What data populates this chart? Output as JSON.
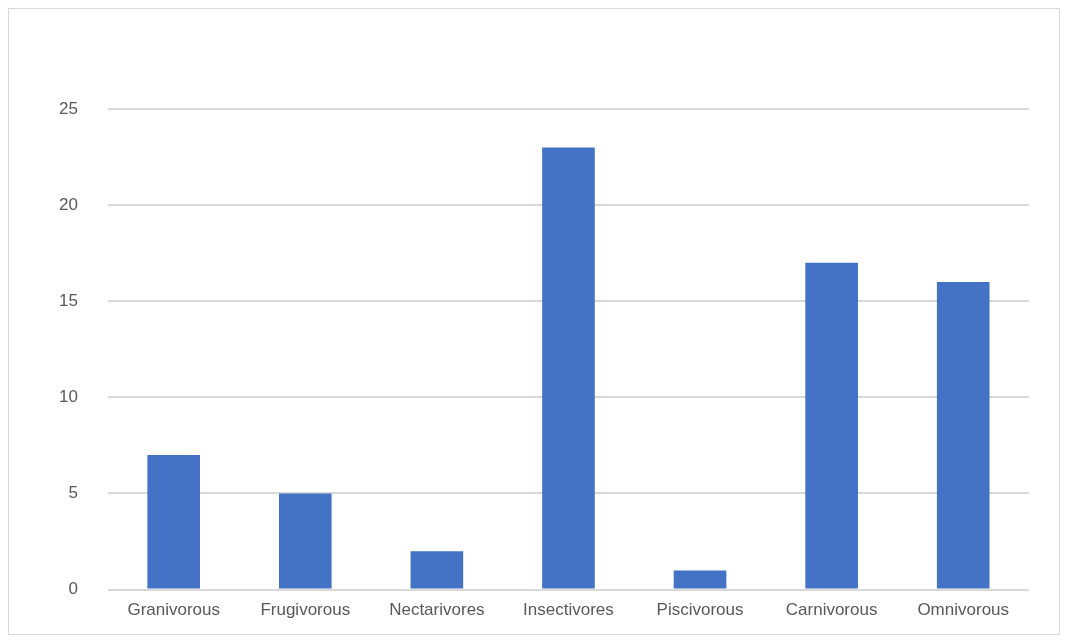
{
  "chart_data": {
    "type": "bar",
    "categories": [
      "Granivorous",
      "Frugivorous",
      "Nectarivores",
      "Insectivores",
      "Piscivorous",
      "Carnivorous",
      "Omnivorous"
    ],
    "values": [
      7,
      5,
      2,
      23,
      1,
      17,
      16
    ],
    "color": "#4472c4",
    "ylim": [
      0,
      25
    ],
    "yticks": [
      0,
      5,
      10,
      15,
      20,
      25
    ],
    "grid": "y",
    "legend": false
  }
}
